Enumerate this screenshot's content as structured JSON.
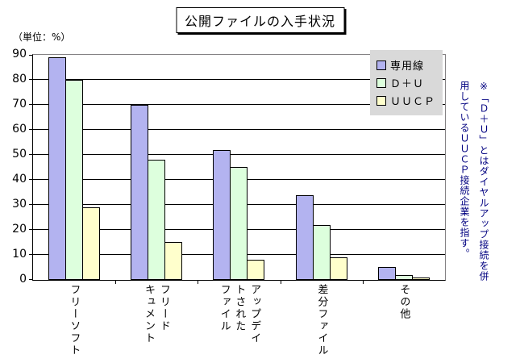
{
  "title": "公開ファイルの入手状況",
  "unit_label": "（単位：%）",
  "note": "※「Ｄ＋Ｕ」とはダイヤルアップ接続を併\n用しているＵＵＣＰ接続企業を指す。",
  "colors": {
    "series_dedicated": "#b3b3f0",
    "series_du": "#ddffdd",
    "series_uucp": "#ffffcc",
    "legend_background": "#d9d9d9",
    "note_text": "#000080",
    "gridline": "#000000",
    "plot_border": "#848284"
  },
  "chart_data": {
    "type": "bar",
    "title": "公開ファイルの入手状況",
    "ylabel": "（単位：%）",
    "xlabel": "",
    "categories": [
      "フリーソフト",
      "フリードキュメント",
      "アップデイトされたファイル",
      "差分ファイル",
      "その他"
    ],
    "category_labels_wrapped": [
      "フリーソフト",
      "フリード\nキュメント",
      "アップデイ\nトされた\nファイル",
      "差分ファイル",
      "その他"
    ],
    "series": [
      {
        "name": "専用線",
        "color": "#b3b3f0",
        "values": [
          89,
          70,
          52,
          34,
          5
        ]
      },
      {
        "name": "Ｄ＋Ｕ",
        "color": "#ddffdd",
        "values": [
          80,
          48,
          45,
          22,
          2
        ]
      },
      {
        "name": "ＵＵＣＰ",
        "color": "#ffffcc",
        "values": [
          29,
          15,
          8,
          9,
          1
        ]
      }
    ],
    "ylim": [
      0,
      90
    ],
    "yticks": [
      0,
      10,
      20,
      30,
      40,
      50,
      60,
      70,
      80,
      90
    ],
    "grid": true,
    "legend_position": "top-right-inside",
    "footnote": "※「Ｄ＋Ｕ」とはダイヤルアップ接続を併用しているＵＵＣＰ接続企業を指す。"
  }
}
